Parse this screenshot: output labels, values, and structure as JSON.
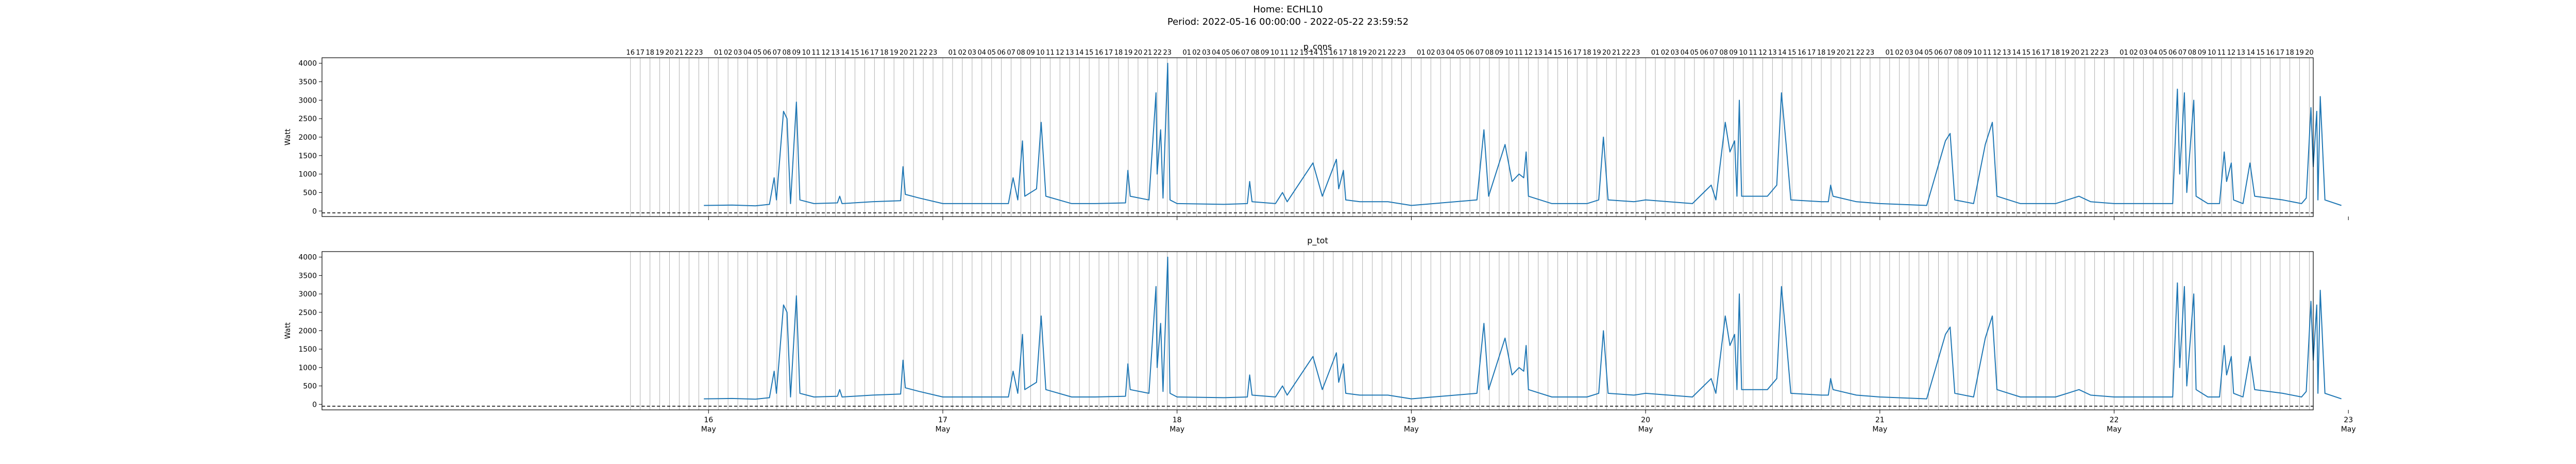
{
  "figure": {
    "home_line": "Home: ECHL10",
    "period_line": "Period: 2022-05-16 00:00:00 - 2022-05-22 23:59:52"
  },
  "chart_data": [
    {
      "type": "line",
      "title": "p_cons",
      "ylabel": "Watt",
      "ylim": [
        -150,
        4150
      ],
      "yticks": [
        0,
        500,
        1000,
        1500,
        2000,
        2500,
        3000,
        3500,
        4000
      ],
      "xlim": [
        -1.65,
        6.85
      ],
      "x_unit": "days since 2022-05-16 00:00",
      "date_ticks": [
        "16",
        "17",
        "18",
        "19",
        "20",
        "21",
        "22",
        "23"
      ],
      "date_month": "May",
      "hour_ticks_start": -0.3333,
      "hour_ticks_end": 7.3333,
      "hour_tick_labels_note": "2-digit hours, '00' shown as blank",
      "baseline_y": -50,
      "grid_vertical_hourly": true,
      "series": [
        {
          "name": "p_cons",
          "color": "#1f77b4",
          "points": [
            [
              -0.02,
              150
            ],
            [
              0.1,
              160
            ],
            [
              0.2,
              140
            ],
            [
              0.26,
              180
            ],
            [
              0.28,
              900
            ],
            [
              0.29,
              300
            ],
            [
              0.32,
              2700
            ],
            [
              0.335,
              2500
            ],
            [
              0.35,
              200
            ],
            [
              0.375,
              2950
            ],
            [
              0.39,
              300
            ],
            [
              0.45,
              200
            ],
            [
              0.55,
              220
            ],
            [
              0.56,
              400
            ],
            [
              0.57,
              200
            ],
            [
              0.7,
              250
            ],
            [
              0.82,
              280
            ],
            [
              0.83,
              1200
            ],
            [
              0.84,
              450
            ],
            [
              0.9,
              350
            ],
            [
              1.0,
              200
            ],
            [
              1.28,
              200
            ],
            [
              1.3,
              900
            ],
            [
              1.32,
              300
            ],
            [
              1.34,
              1900
            ],
            [
              1.35,
              400
            ],
            [
              1.4,
              600
            ],
            [
              1.42,
              2400
            ],
            [
              1.44,
              400
            ],
            [
              1.55,
              200
            ],
            [
              1.65,
              200
            ],
            [
              1.78,
              220
            ],
            [
              1.79,
              1100
            ],
            [
              1.8,
              400
            ],
            [
              1.88,
              300
            ],
            [
              1.91,
              3200
            ],
            [
              1.915,
              1000
            ],
            [
              1.93,
              2200
            ],
            [
              1.94,
              350
            ],
            [
              1.96,
              4000
            ],
            [
              1.97,
              300
            ],
            [
              2.0,
              200
            ],
            [
              2.2,
              180
            ],
            [
              2.3,
              200
            ],
            [
              2.31,
              800
            ],
            [
              2.32,
              250
            ],
            [
              2.42,
              200
            ],
            [
              2.45,
              500
            ],
            [
              2.47,
              250
            ],
            [
              2.58,
              1300
            ],
            [
              2.62,
              400
            ],
            [
              2.68,
              1400
            ],
            [
              2.69,
              600
            ],
            [
              2.71,
              1100
            ],
            [
              2.72,
              300
            ],
            [
              2.78,
              250
            ],
            [
              2.9,
              250
            ],
            [
              2.95,
              200
            ],
            [
              3.0,
              150
            ],
            [
              3.28,
              300
            ],
            [
              3.31,
              2200
            ],
            [
              3.33,
              400
            ],
            [
              3.4,
              1800
            ],
            [
              3.43,
              800
            ],
            [
              3.46,
              1000
            ],
            [
              3.48,
              900
            ],
            [
              3.49,
              1600
            ],
            [
              3.5,
              400
            ],
            [
              3.6,
              200
            ],
            [
              3.75,
              200
            ],
            [
              3.8,
              300
            ],
            [
              3.82,
              2000
            ],
            [
              3.84,
              300
            ],
            [
              3.95,
              250
            ],
            [
              4.0,
              300
            ],
            [
              4.2,
              200
            ],
            [
              4.28,
              700
            ],
            [
              4.3,
              300
            ],
            [
              4.34,
              2400
            ],
            [
              4.36,
              1600
            ],
            [
              4.38,
              1900
            ],
            [
              4.39,
              400
            ],
            [
              4.4,
              3000
            ],
            [
              4.41,
              400
            ],
            [
              4.52,
              400
            ],
            [
              4.56,
              700
            ],
            [
              4.58,
              3200
            ],
            [
              4.6,
              1800
            ],
            [
              4.62,
              300
            ],
            [
              4.75,
              250
            ],
            [
              4.78,
              250
            ],
            [
              4.79,
              700
            ],
            [
              4.8,
              400
            ],
            [
              4.9,
              250
            ],
            [
              5.0,
              200
            ],
            [
              5.2,
              150
            ],
            [
              5.28,
              1900
            ],
            [
              5.3,
              2100
            ],
            [
              5.32,
              300
            ],
            [
              5.4,
              200
            ],
            [
              5.45,
              1800
            ],
            [
              5.48,
              2400
            ],
            [
              5.5,
              400
            ],
            [
              5.6,
              200
            ],
            [
              5.75,
              200
            ],
            [
              5.8,
              300
            ],
            [
              5.85,
              400
            ],
            [
              5.9,
              250
            ],
            [
              6.0,
              200
            ],
            [
              6.18,
              200
            ],
            [
              6.25,
              200
            ],
            [
              6.27,
              3300
            ],
            [
              6.28,
              1000
            ],
            [
              6.3,
              3200
            ],
            [
              6.31,
              500
            ],
            [
              6.34,
              3000
            ],
            [
              6.35,
              400
            ],
            [
              6.4,
              200
            ],
            [
              6.45,
              200
            ],
            [
              6.47,
              1600
            ],
            [
              6.48,
              800
            ],
            [
              6.5,
              1300
            ],
            [
              6.51,
              300
            ],
            [
              6.55,
              200
            ],
            [
              6.58,
              1300
            ],
            [
              6.6,
              400
            ],
            [
              6.72,
              300
            ],
            [
              6.8,
              200
            ],
            [
              6.82,
              350
            ],
            [
              6.84,
              2800
            ],
            [
              6.85,
              1200
            ],
            [
              6.865,
              2700
            ],
            [
              6.87,
              300
            ],
            [
              6.88,
              3100
            ],
            [
              6.9,
              300
            ],
            [
              6.97,
              150
            ]
          ]
        }
      ]
    },
    {
      "type": "line",
      "title": "p_tot",
      "ylabel": "Watt",
      "ylim": [
        -150,
        4150
      ],
      "yticks": [
        0,
        500,
        1000,
        1500,
        2000,
        2500,
        3000,
        3500,
        4000
      ],
      "xlim": [
        -1.65,
        6.85
      ],
      "x_unit": "days since 2022-05-16 00:00",
      "date_ticks": [
        "16",
        "17",
        "18",
        "19",
        "20",
        "21",
        "22",
        "23"
      ],
      "date_month": "May",
      "baseline_y": -50,
      "grid_vertical_hourly": true,
      "series": [
        {
          "name": "p_tot",
          "color": "#1f77b4",
          "points": "same as p_cons"
        }
      ]
    }
  ]
}
